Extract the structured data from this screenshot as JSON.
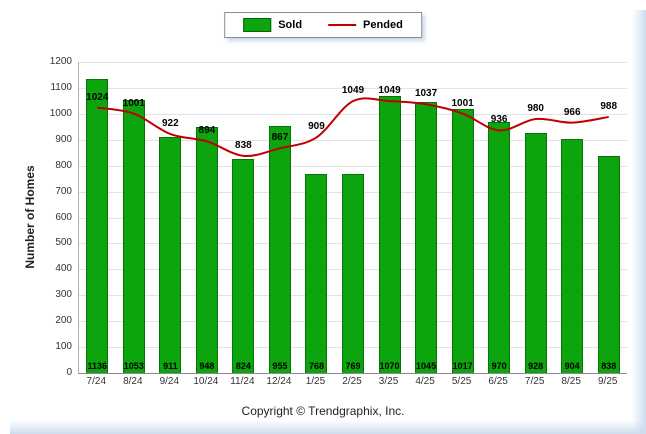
{
  "legend": {
    "sold_label": "Sold",
    "pended_label": "Pended"
  },
  "footer": {
    "copyright": "Copyright © Trendgraphix, Inc."
  },
  "chart_data": {
    "type": "combo",
    "title": "",
    "xlabel": "",
    "ylabel": "Number of Homes",
    "ylim": [
      0,
      1200
    ],
    "ytick_step": 100,
    "grid": true,
    "legend_position": "top-center",
    "categories": [
      "7/24",
      "8/24",
      "9/24",
      "10/24",
      "11/24",
      "12/24",
      "1/25",
      "2/25",
      "3/25",
      "4/25",
      "5/25",
      "6/25",
      "7/25",
      "8/25",
      "9/25"
    ],
    "series": [
      {
        "name": "Sold",
        "type": "bar",
        "color": "#0da50d",
        "values": [
          1136,
          1053,
          911,
          948,
          824,
          955,
          768,
          769,
          1070,
          1045,
          1017,
          970,
          928,
          904,
          838
        ]
      },
      {
        "name": "Pended",
        "type": "line",
        "color": "#c00000",
        "values": [
          1024,
          1001,
          922,
          894,
          838,
          867,
          909,
          1049,
          1049,
          1037,
          1001,
          936,
          980,
          966,
          988
        ]
      }
    ]
  }
}
